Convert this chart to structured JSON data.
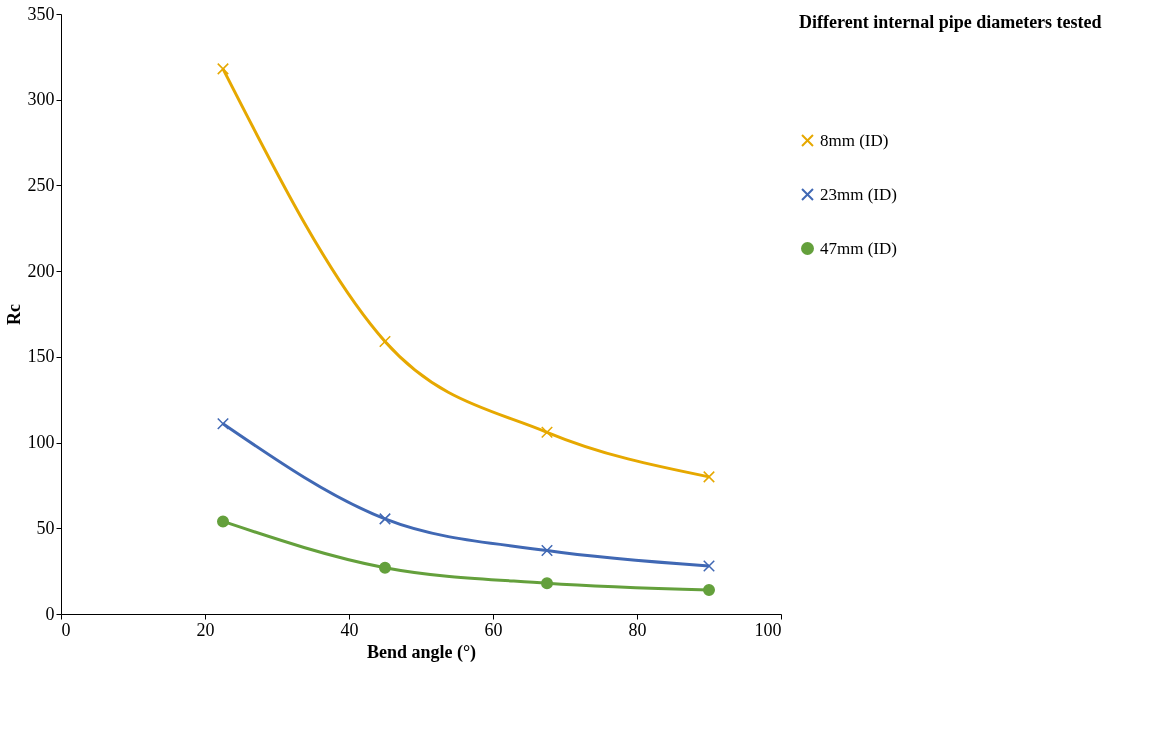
{
  "chart_data": {
    "type": "line",
    "xlabel": "Bend angle (°)",
    "ylabel": "Rc",
    "legend_title": "Different internal pipe diameters tested",
    "x": [
      22.5,
      45,
      67.5,
      90
    ],
    "series": [
      {
        "name": "8mm (ID)",
        "color": "#e6a800",
        "marker": "cross",
        "values": [
          318,
          159,
          106,
          80
        ]
      },
      {
        "name": "23mm  (ID)",
        "color": "#4068b4",
        "marker": "cross",
        "values": [
          111,
          55.5,
          37,
          28
        ]
      },
      {
        "name": "47mm (ID)",
        "color": "#64a03c",
        "marker": "circle",
        "values": [
          54,
          27,
          18,
          14
        ]
      }
    ],
    "xlim": [
      0,
      100
    ],
    "xticks": [
      0,
      20,
      40,
      60,
      80,
      100
    ],
    "ylim": [
      0,
      350
    ],
    "yticks": [
      0,
      50,
      100,
      150,
      200,
      250,
      300,
      350
    ],
    "grid": false,
    "legend": "right",
    "line_style": "solid"
  }
}
